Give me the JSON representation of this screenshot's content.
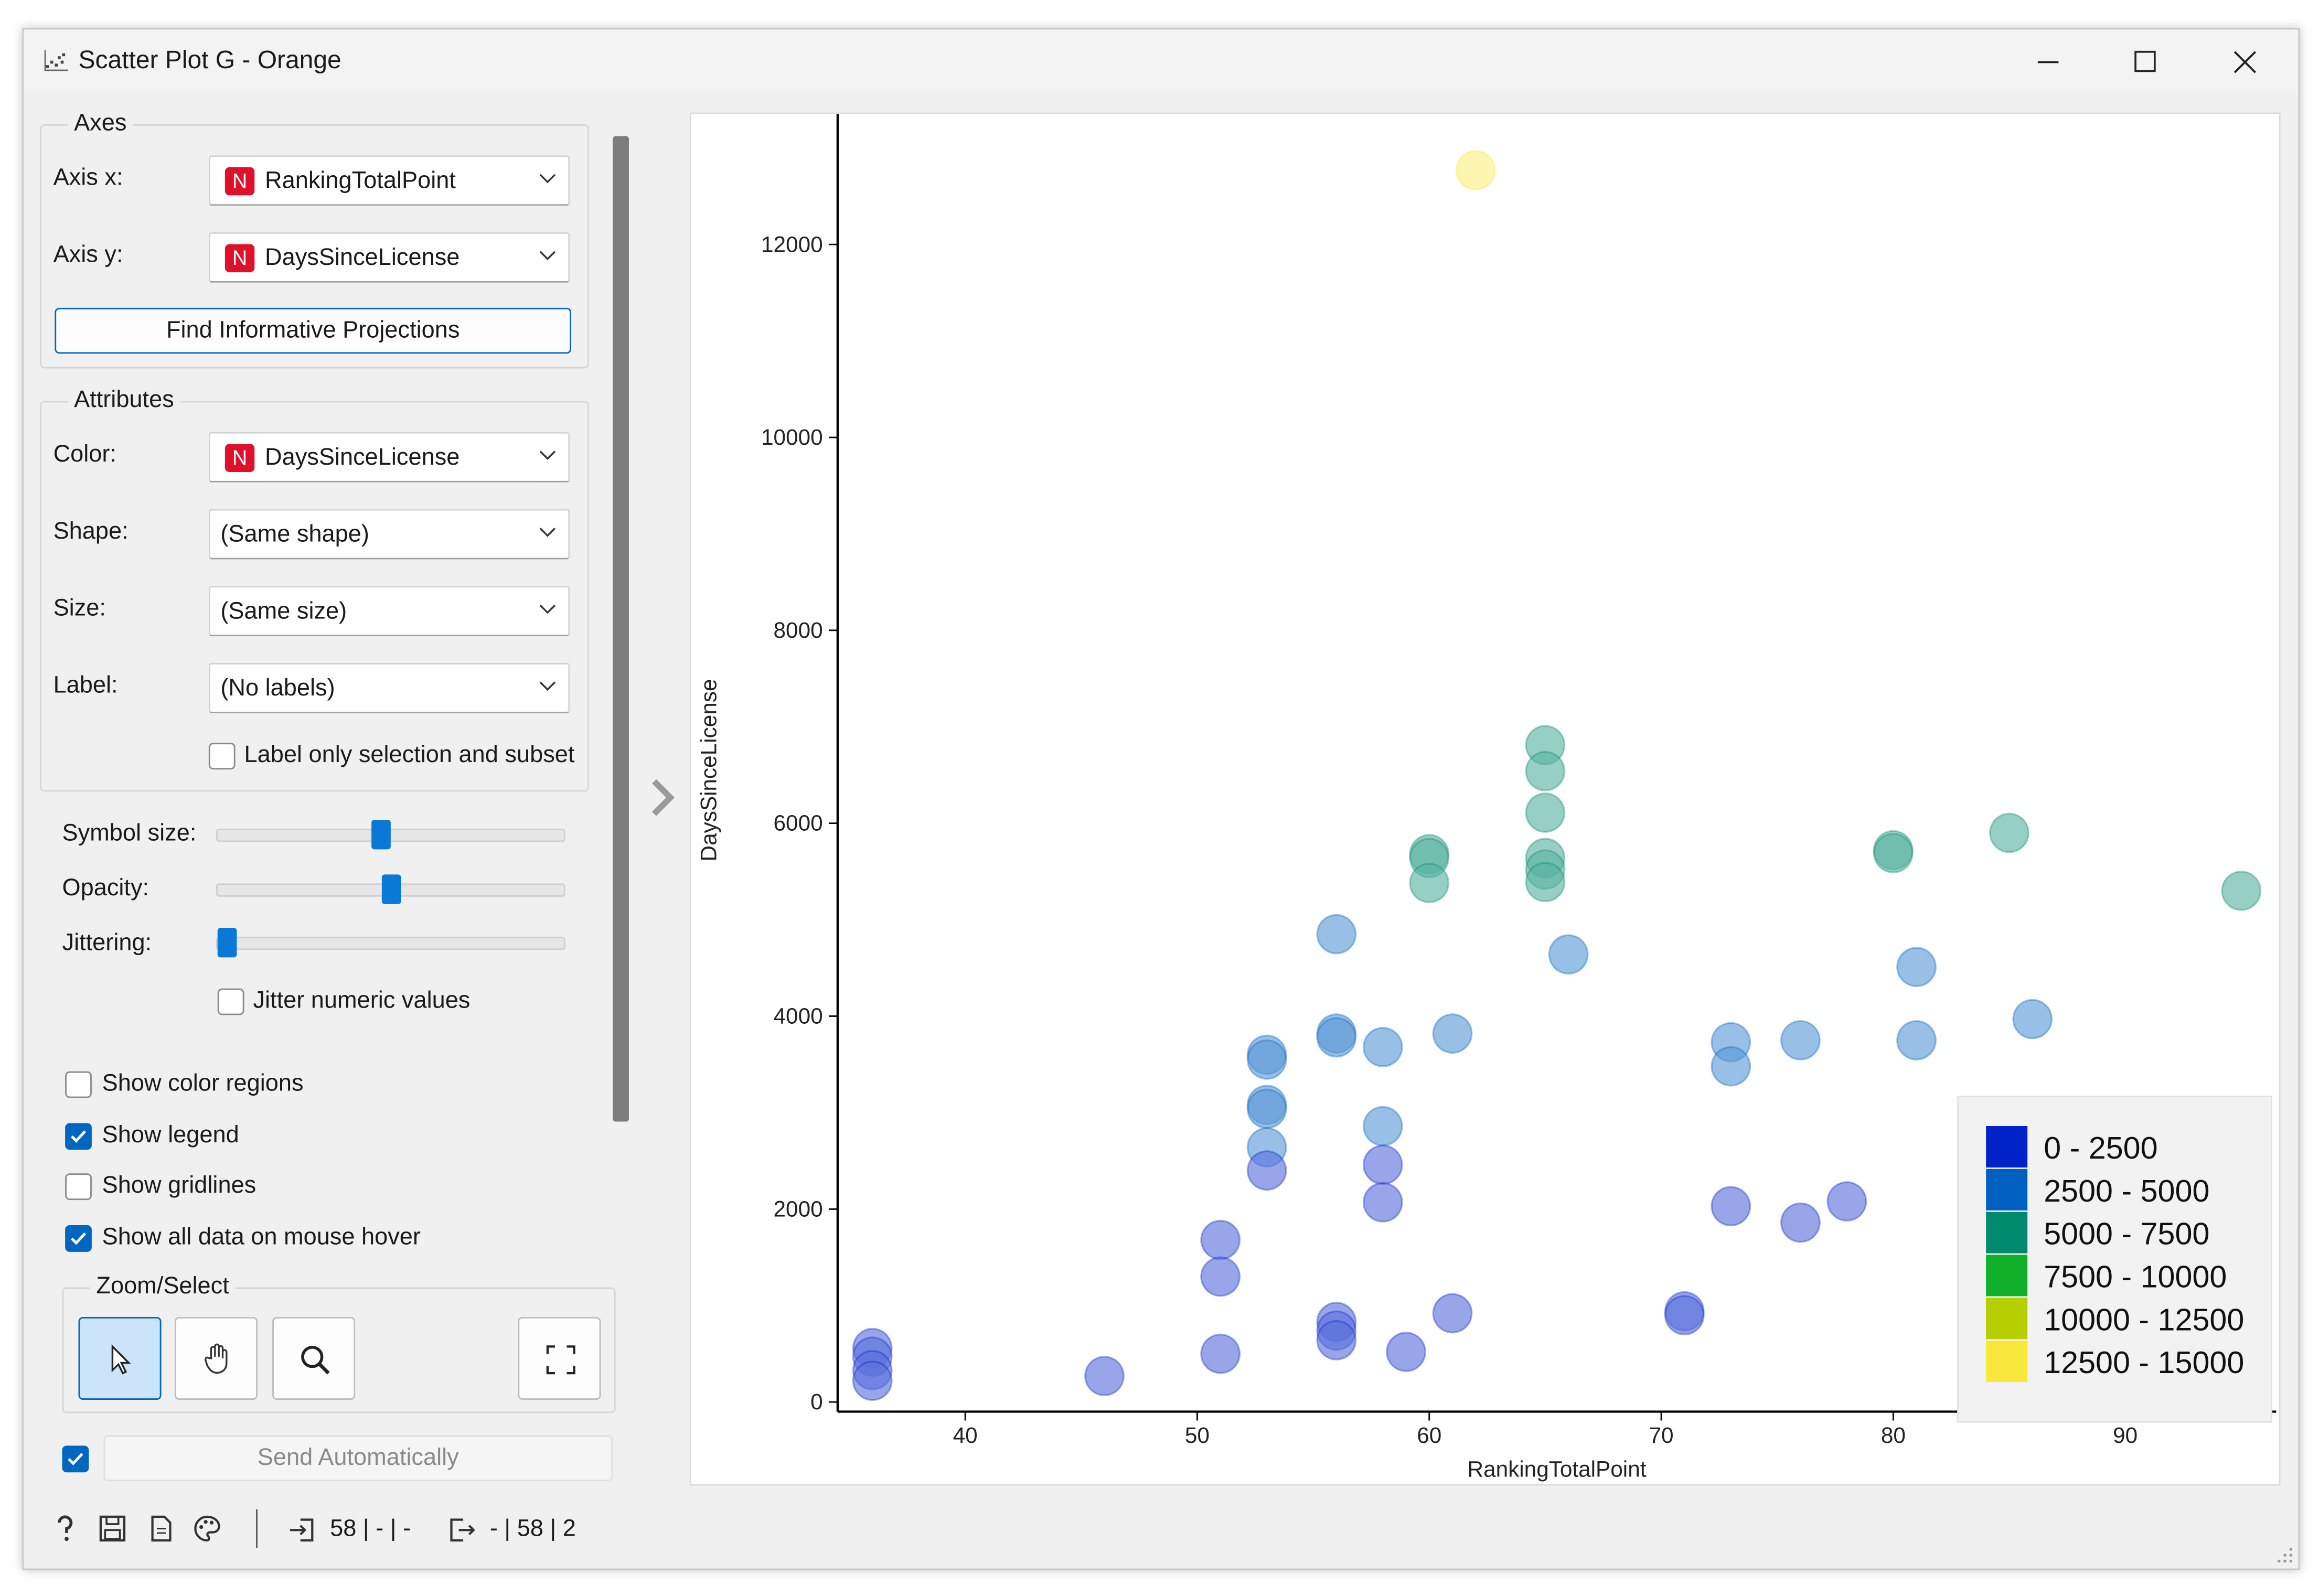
{
  "window": {
    "title": "Scatter Plot G - Orange",
    "controls": {
      "minimize": "minimize-icon",
      "maximize": "maximize-icon",
      "close": "close-icon"
    }
  },
  "axes_group": {
    "title": "Axes",
    "axis_x_label": "Axis x:",
    "axis_x_value": "RankingTotalPoint",
    "axis_y_label": "Axis y:",
    "axis_y_value": "DaysSinceLicense",
    "numeric_badge": "N",
    "find_button": "Find Informative Projections"
  },
  "attributes_group": {
    "title": "Attributes",
    "color_label": "Color:",
    "color_value": "DaysSinceLicense",
    "shape_label": "Shape:",
    "shape_value": "(Same shape)",
    "size_label": "Size:",
    "size_value": "(Same size)",
    "label_label": "Label:",
    "label_value": "(No labels)",
    "label_only_selection": "Label only selection and subset",
    "label_only_selection_checked": false
  },
  "sliders": {
    "symbol_size_label": "Symbol size:",
    "symbol_size_level": 0.47,
    "opacity_label": "Opacity:",
    "opacity_level": 0.5,
    "jittering_label": "Jittering:",
    "jittering_level": 0.0,
    "jitter_numeric": "Jitter numeric values",
    "jitter_numeric_checked": false
  },
  "options": {
    "show_color_regions": "Show color regions",
    "show_color_regions_checked": false,
    "show_legend": "Show legend",
    "show_legend_checked": true,
    "show_gridlines": "Show gridlines",
    "show_gridlines_checked": false,
    "show_all_data": "Show all data on mouse hover",
    "show_all_data_checked": true
  },
  "zoom_select": {
    "title": "Zoom/Select",
    "tools": [
      "pointer-icon",
      "hand-pan-icon",
      "magnify-zoom-icon",
      "fit-view-icon"
    ],
    "active_tool": "pointer-icon"
  },
  "send": {
    "label": "Send Automatically",
    "checked": true
  },
  "status_bar": {
    "icons": [
      "help-icon",
      "save-icon",
      "report-icon",
      "palette-icon"
    ],
    "input_summary": "58 | - | -",
    "output_summary": "- | 58 | 2"
  },
  "colors": {
    "accent": "#0067c0",
    "badge_red": "#e0102b"
  },
  "chart_data": {
    "type": "scatter",
    "xlabel": "RankingTotalPoint",
    "ylabel": "DaysSinceLicense",
    "xlim": [
      34.5,
      96.5
    ],
    "ylim": [
      -100,
      13200
    ],
    "xticks": [
      40,
      50,
      60,
      70,
      80,
      90
    ],
    "yticks": [
      0,
      2000,
      4000,
      6000,
      8000,
      10000,
      12000
    ],
    "grid": false,
    "legend_position": "bottom-right",
    "legend": [
      {
        "label": "0 - 2500",
        "color": "#0022c8"
      },
      {
        "label": "2500 - 5000",
        "color": "#0060c2"
      },
      {
        "label": "5000 - 7500",
        "color": "#00896c"
      },
      {
        "label": "7500 - 10000",
        "color": "#10b02a"
      },
      {
        "label": "10000 - 12500",
        "color": "#b5cf00"
      },
      {
        "label": "12500 - 15000",
        "color": "#f8e83c"
      }
    ],
    "points": [
      {
        "x": 36,
        "y": 560
      },
      {
        "x": 36,
        "y": 470
      },
      {
        "x": 36,
        "y": 330
      },
      {
        "x": 36,
        "y": 220
      },
      {
        "x": 46,
        "y": 270
      },
      {
        "x": 51,
        "y": 1680
      },
      {
        "x": 51,
        "y": 1300
      },
      {
        "x": 51,
        "y": 500
      },
      {
        "x": 53,
        "y": 3600
      },
      {
        "x": 53,
        "y": 3550
      },
      {
        "x": 53,
        "y": 3080
      },
      {
        "x": 53,
        "y": 3040
      },
      {
        "x": 53,
        "y": 2640
      },
      {
        "x": 53,
        "y": 2400
      },
      {
        "x": 56,
        "y": 4850
      },
      {
        "x": 56,
        "y": 3820
      },
      {
        "x": 56,
        "y": 3780
      },
      {
        "x": 56,
        "y": 830
      },
      {
        "x": 56,
        "y": 740
      },
      {
        "x": 56,
        "y": 640
      },
      {
        "x": 58,
        "y": 3680
      },
      {
        "x": 58,
        "y": 2860
      },
      {
        "x": 58,
        "y": 2460
      },
      {
        "x": 58,
        "y": 2070
      },
      {
        "x": 59,
        "y": 520
      },
      {
        "x": 60,
        "y": 5680
      },
      {
        "x": 60,
        "y": 5640
      },
      {
        "x": 60,
        "y": 5380
      },
      {
        "x": 61,
        "y": 3820
      },
      {
        "x": 61,
        "y": 920
      },
      {
        "x": 62,
        "y": 12770
      },
      {
        "x": 65,
        "y": 6810
      },
      {
        "x": 65,
        "y": 6540
      },
      {
        "x": 65,
        "y": 6110
      },
      {
        "x": 65,
        "y": 5640
      },
      {
        "x": 65,
        "y": 5520
      },
      {
        "x": 65,
        "y": 5390
      },
      {
        "x": 66,
        "y": 4640
      },
      {
        "x": 71,
        "y": 940
      },
      {
        "x": 71,
        "y": 900
      },
      {
        "x": 73,
        "y": 3730
      },
      {
        "x": 73,
        "y": 3480
      },
      {
        "x": 73,
        "y": 2030
      },
      {
        "x": 76,
        "y": 3750
      },
      {
        "x": 76,
        "y": 1860
      },
      {
        "x": 78,
        "y": 2080
      },
      {
        "x": 80,
        "y": 5720
      },
      {
        "x": 80,
        "y": 5690
      },
      {
        "x": 81,
        "y": 4510
      },
      {
        "x": 81,
        "y": 3750
      },
      {
        "x": 85,
        "y": 5900
      },
      {
        "x": 86,
        "y": 3970
      },
      {
        "x": 95,
        "y": 5300
      }
    ]
  }
}
